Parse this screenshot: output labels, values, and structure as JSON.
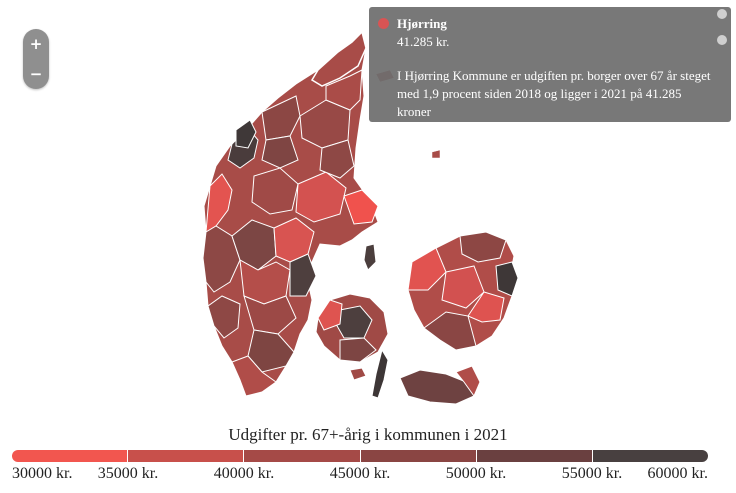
{
  "zoom": {
    "in_label": "+",
    "out_label": "−"
  },
  "tooltip": {
    "title": "Hjørring",
    "value": "41.285 kr.",
    "description": "I Hjørring Kommune er udgiften pr. borger over 67 år steget med 1,9 procent siden 2018 og ligger i 2021 på 41.285 kroner",
    "dot_color": "#d85454"
  },
  "legend": {
    "title": "Udgifter pr. 67+-årig i kommunen i 2021",
    "labels": [
      "30000 kr.",
      "35000 kr.",
      "40000 kr.",
      "45000 kr.",
      "50000 kr.",
      "55000 kr.",
      "60000 kr."
    ],
    "colors": [
      "#f2564f",
      "#c8504b",
      "#a54a47",
      "#8a4543",
      "#6a4040",
      "#484040"
    ]
  },
  "colors": {
    "background": "#ffffff",
    "tooltip_bg": "#6e6e6e",
    "border": "#ffffff"
  }
}
